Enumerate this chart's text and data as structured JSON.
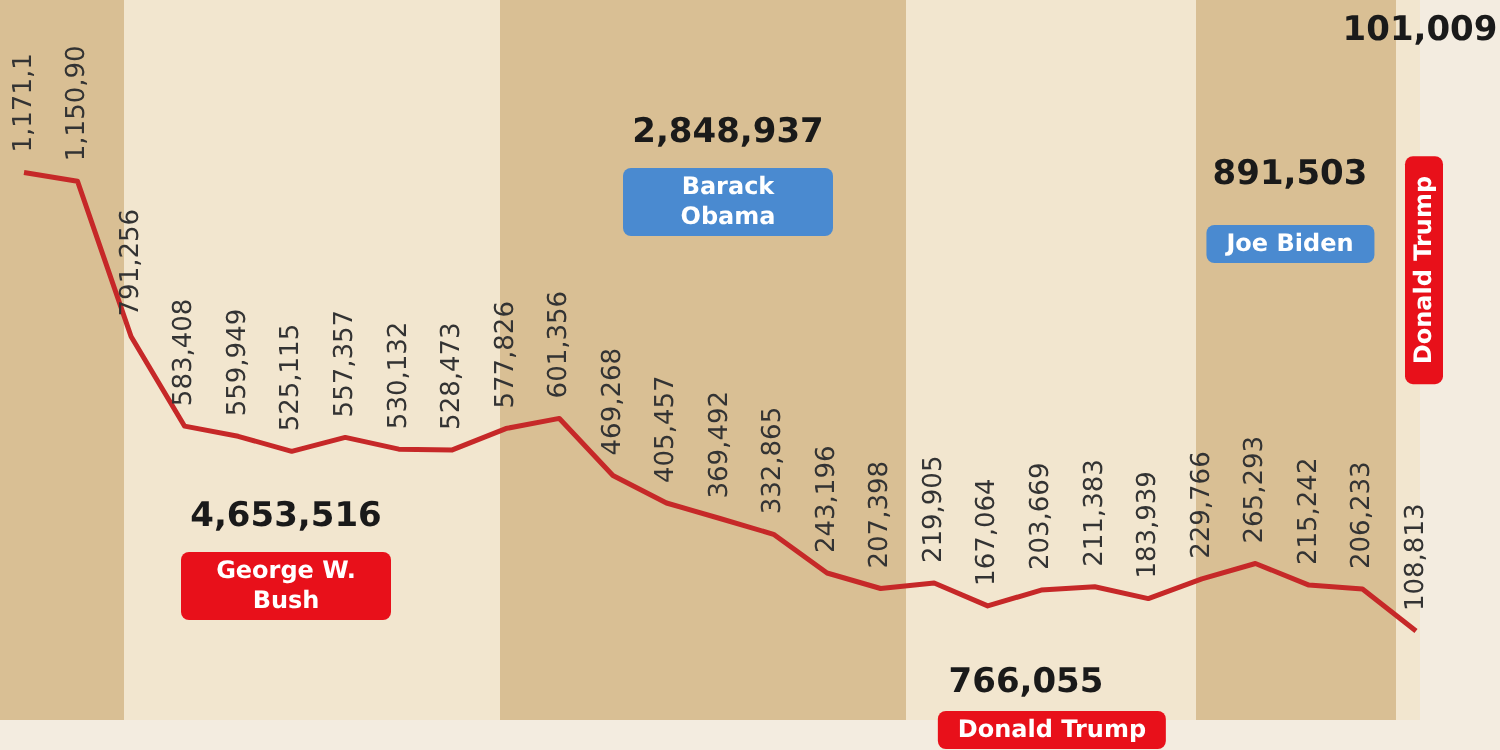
{
  "chart_data": {
    "type": "line",
    "categories": [
      null,
      null,
      null,
      null,
      null,
      null,
      null,
      null,
      null,
      null,
      null,
      null,
      null,
      null,
      null,
      null,
      null,
      null,
      null,
      null,
      null,
      null,
      null,
      null,
      null,
      null,
      null
    ],
    "series": [
      {
        "color": "#c62828",
        "values": [
          1171100,
          1150900,
          791256,
          583408,
          559949,
          525115,
          557357,
          530132,
          528473,
          577826,
          601356,
          469268,
          405457,
          369492,
          332865,
          243196,
          207398,
          219905,
          167064,
          203669,
          211383,
          183939,
          229766,
          265293,
          215242,
          206233,
          108813
        ],
        "value_labels": [
          "1,171,1",
          "1,150,90",
          "791,256",
          "583,408",
          "559,949",
          "525,115",
          "557,357",
          "530,132",
          "528,473",
          "577,826",
          "601,356",
          "469,268",
          "405,457",
          "369,492",
          "332,865",
          "243,196",
          "207,398",
          "219,905",
          "167,064",
          "203,669",
          "211,383",
          "183,939",
          "229,766",
          "265,293",
          "215,242",
          "206,233",
          "108,813"
        ]
      }
    ],
    "annotations": [
      "4,653,516",
      "George W. Bush",
      "2,848,937",
      "Barack Obama",
      "766,055",
      "Donald Trump",
      "891,503",
      "Joe Biden",
      "101,009",
      "Donald Trump"
    ],
    "marker": "none",
    "legend": false,
    "tick_labels": false
  }
}
